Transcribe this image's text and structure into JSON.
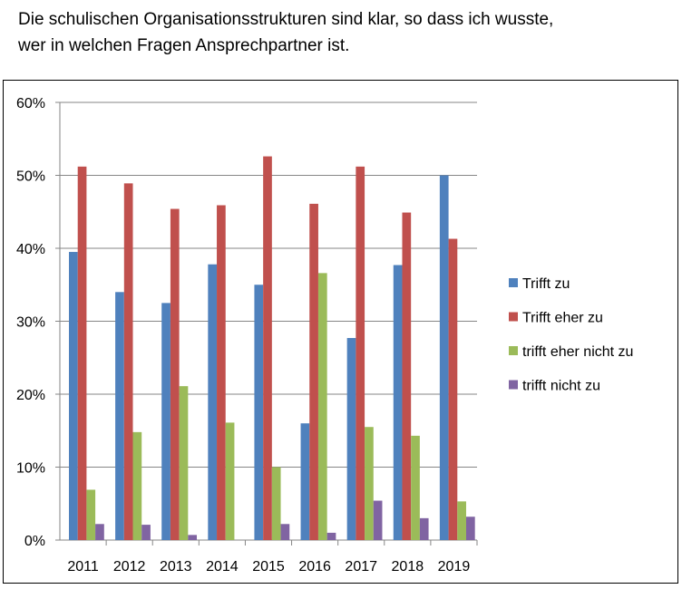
{
  "title": {
    "line1": "Die schulischen Organisationsstrukturen sind klar, so dass ich wusste,",
    "line2": "wer in welchen Fragen Ansprechpartner ist."
  },
  "chart_data": {
    "type": "bar",
    "title": "Die schulischen Organisationsstrukturen sind klar, so dass ich wusste, wer in welchen Fragen Ansprechpartner ist.",
    "xlabel": "",
    "ylabel": "",
    "ylim": [
      0,
      60
    ],
    "yticks": [
      "0%",
      "10%",
      "20%",
      "30%",
      "40%",
      "50%",
      "60%"
    ],
    "grid": true,
    "legend_position": "right",
    "categories": [
      "2011",
      "2012",
      "2013",
      "2014",
      "2015",
      "2016",
      "2017",
      "2018",
      "2019"
    ],
    "series": [
      {
        "name": "Trifft zu",
        "color": "#4F81BD",
        "values": [
          39.5,
          34,
          32.5,
          37.8,
          35,
          16,
          27.7,
          37.7,
          50
        ]
      },
      {
        "name": "Trifft eher zu",
        "color": "#C0504D",
        "values": [
          51.2,
          48.9,
          45.4,
          45.9,
          52.6,
          46.1,
          51.2,
          44.9,
          41.3
        ]
      },
      {
        "name": "trifft eher nicht zu",
        "color": "#9BBB59",
        "values": [
          6.9,
          14.8,
          21.1,
          16.1,
          10,
          36.6,
          15.5,
          14.3,
          5.3
        ]
      },
      {
        "name": "trifft nicht zu",
        "color": "#8064A2",
        "values": [
          2.2,
          2.1,
          0.7,
          0,
          2.2,
          1,
          5.4,
          3,
          3.2
        ]
      }
    ]
  }
}
